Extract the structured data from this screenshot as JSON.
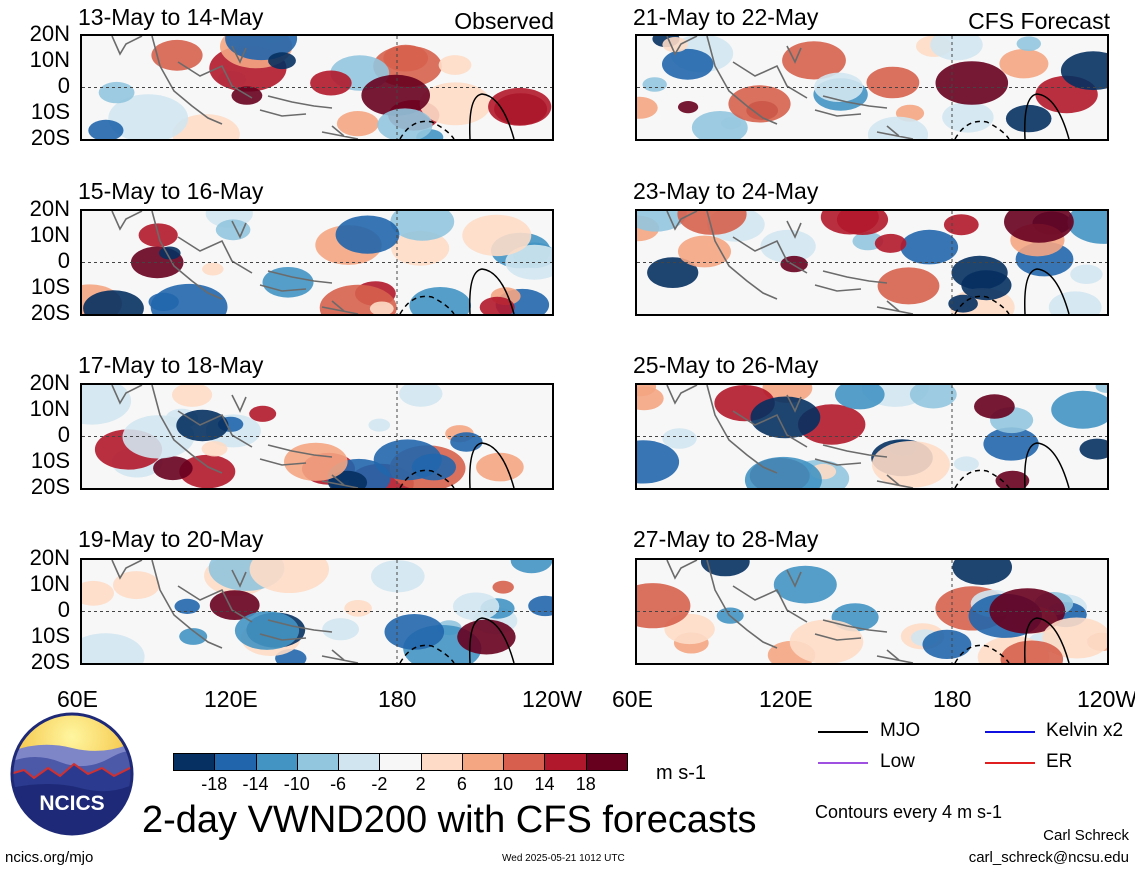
{
  "panels": [
    {
      "title": "13-May to 14-May",
      "tag": "Observed"
    },
    {
      "title": "21-May to 22-May",
      "tag": "CFS Forecast"
    },
    {
      "title": "15-May to 16-May",
      "tag": ""
    },
    {
      "title": "23-May to 24-May",
      "tag": ""
    },
    {
      "title": "17-May to 18-May",
      "tag": ""
    },
    {
      "title": "25-May to 26-May",
      "tag": ""
    },
    {
      "title": "19-May to 20-May",
      "tag": ""
    },
    {
      "title": "27-May to 28-May",
      "tag": ""
    }
  ],
  "lat_labels": [
    "20N",
    "10N",
    "0",
    "10S",
    "20S"
  ],
  "lon_labels": [
    "60E",
    "120E",
    "180",
    "120W"
  ],
  "colorbar": {
    "colors": [
      "#053061",
      "#2166ac",
      "#4393c3",
      "#92c5de",
      "#d1e5f0",
      "#f7f7f7",
      "#fddbc7",
      "#f4a582",
      "#d6604d",
      "#b2182b",
      "#67001f"
    ],
    "ticks": [
      "-18",
      "-14",
      "-10",
      "-6",
      "-2",
      "2",
      "6",
      "10",
      "14",
      "18"
    ],
    "unit": "m s-1"
  },
  "legend": {
    "items": [
      {
        "label": "MJO",
        "color": "#000000"
      },
      {
        "label": "Kelvin x2",
        "color": "#1010e0"
      },
      {
        "label": "Low",
        "color": "#a050e0"
      },
      {
        "label": "ER",
        "color": "#e02020"
      }
    ],
    "contours_note": "Contours every 4 m s-1"
  },
  "logo_text": "NCICS",
  "main_title": "2-day VWND200 with CFS forecasts",
  "credit_name": "Carl Schreck",
  "credit_email": "carl_schreck@ncsu.edu",
  "footer_url": "ncics.org/mjo",
  "timestamp": "Wed 2025-05-21 1012 UTC"
}
